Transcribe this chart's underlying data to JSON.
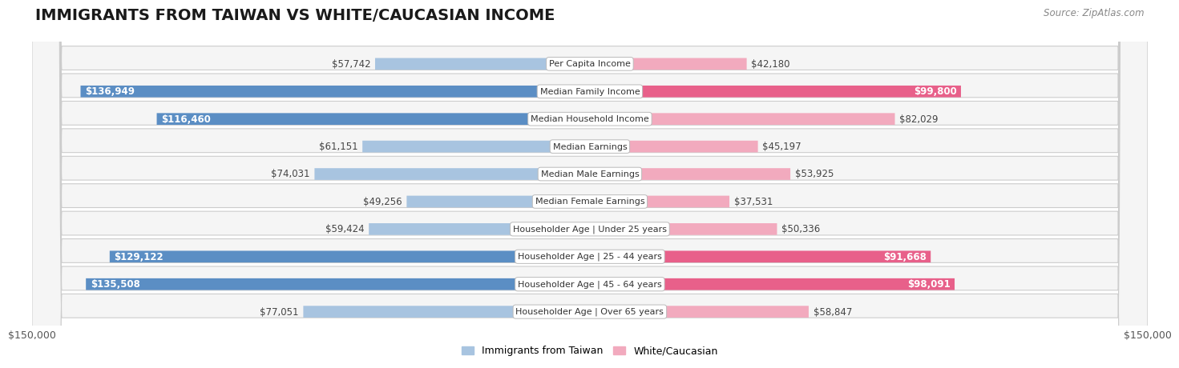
{
  "title": "IMMIGRANTS FROM TAIWAN VS WHITE/CAUCASIAN INCOME",
  "source": "Source: ZipAtlas.com",
  "categories": [
    "Per Capita Income",
    "Median Family Income",
    "Median Household Income",
    "Median Earnings",
    "Median Male Earnings",
    "Median Female Earnings",
    "Householder Age | Under 25 years",
    "Householder Age | 25 - 44 years",
    "Householder Age | 45 - 64 years",
    "Householder Age | Over 65 years"
  ],
  "taiwan_values": [
    57742,
    136949,
    116460,
    61151,
    74031,
    49256,
    59424,
    129122,
    135508,
    77051
  ],
  "white_values": [
    42180,
    99800,
    82029,
    45197,
    53925,
    37531,
    50336,
    91668,
    98091,
    58847
  ],
  "taiwan_color_light": "#a8c4e0",
  "taiwan_color_dark": "#5b8ec4",
  "white_color_light": "#f2aabe",
  "white_color_dark": "#e8608a",
  "max_value": 150000,
  "background_color": "#ffffff",
  "row_bg_odd": "#f5f5f5",
  "row_bg_even": "#ebebeb",
  "title_fontsize": 14,
  "value_fontsize": 8.5,
  "cat_fontsize": 8,
  "axis_label": "$150,000",
  "legend_taiwan": "Immigrants from Taiwan",
  "legend_white": "White/Caucasian",
  "dark_threshold": 0.55
}
